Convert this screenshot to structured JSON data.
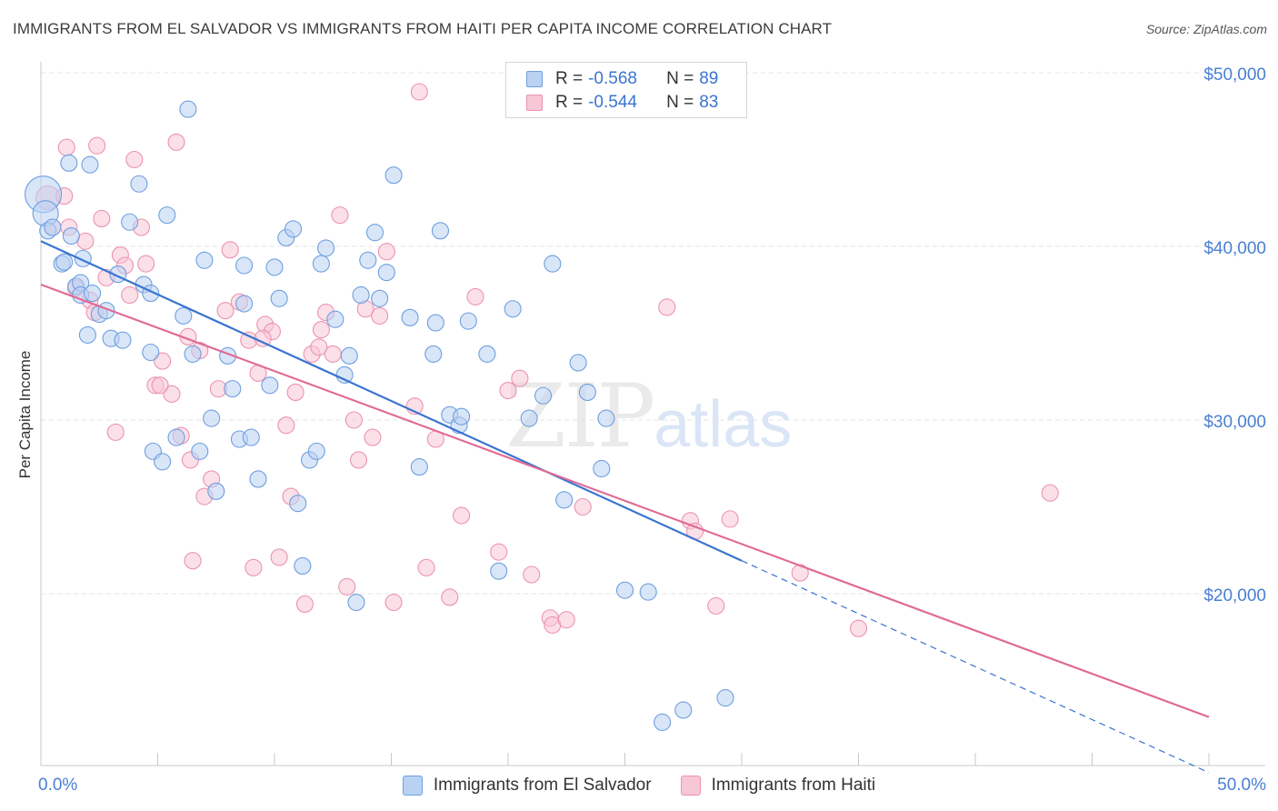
{
  "title": "IMMIGRANTS FROM EL SALVADOR VS IMMIGRANTS FROM HAITI PER CAPITA INCOME CORRELATION CHART",
  "source": "Source: ZipAtlas.com",
  "watermark": {
    "zip": "ZIP",
    "atlas": "atlas"
  },
  "legend": {
    "rows": [
      {
        "r_label": "R =",
        "r_value": "-0.568",
        "n_label": "N =",
        "n_value": "89"
      },
      {
        "r_label": "R =",
        "r_value": "-0.544",
        "n_label": "N =",
        "n_value": "83"
      }
    ]
  },
  "colors": {
    "blue_fill": "#b9d2f3",
    "blue_stroke": "#6e9fe0",
    "blue_line": "#3a74d0",
    "pink_fill": "#f7c7d6",
    "pink_stroke": "#ec93b0",
    "pink_line": "#e06a95",
    "grid": "#e5e5e5",
    "axis_label": "#4a7fd4"
  },
  "chart_data": {
    "type": "scatter",
    "ylabel": "Per Capita Income",
    "xlim": [
      0,
      50
    ],
    "ylim": [
      11000,
      51500
    ],
    "x_tick_labels": [
      "0.0%",
      "50.0%"
    ],
    "y_ticks": [
      {
        "value": 20000,
        "label": "$20,000"
      },
      {
        "value": 30000,
        "label": "$30,000"
      },
      {
        "value": 40000,
        "label": "$40,000"
      },
      {
        "value": 50000,
        "label": "$50,000"
      }
    ],
    "series": [
      {
        "name": "Immigrants from El Salvador",
        "color": "blue",
        "trend": {
          "x0": 0,
          "y0": 40300,
          "x1": 30,
          "y1": 21900,
          "dash_to_x": 50,
          "dash_to_y": 9700
        },
        "points": [
          [
            0.1,
            43000
          ],
          [
            0.2,
            41900
          ],
          [
            0.3,
            40900
          ],
          [
            0.5,
            41100
          ],
          [
            0.9,
            39000
          ],
          [
            1.0,
            39100
          ],
          [
            1.2,
            44800
          ],
          [
            1.3,
            40600
          ],
          [
            1.5,
            37700
          ],
          [
            1.7,
            37900
          ],
          [
            1.7,
            37200
          ],
          [
            1.8,
            39300
          ],
          [
            2.0,
            34900
          ],
          [
            2.1,
            44700
          ],
          [
            2.2,
            37300
          ],
          [
            2.5,
            36100
          ],
          [
            2.8,
            36300
          ],
          [
            3.0,
            34700
          ],
          [
            3.3,
            38400
          ],
          [
            3.5,
            34600
          ],
          [
            3.8,
            41400
          ],
          [
            4.4,
            37800
          ],
          [
            4.7,
            37300
          ],
          [
            4.2,
            43600
          ],
          [
            4.7,
            33900
          ],
          [
            4.8,
            28200
          ],
          [
            5.2,
            27600
          ],
          [
            5.4,
            41800
          ],
          [
            5.8,
            29000
          ],
          [
            6.1,
            36000
          ],
          [
            6.3,
            47900
          ],
          [
            6.5,
            33800
          ],
          [
            6.8,
            28200
          ],
          [
            7.0,
            39200
          ],
          [
            7.3,
            30100
          ],
          [
            7.5,
            25900
          ],
          [
            8.0,
            33700
          ],
          [
            8.2,
            31800
          ],
          [
            8.5,
            28900
          ],
          [
            8.7,
            38900
          ],
          [
            8.7,
            36700
          ],
          [
            9.0,
            29000
          ],
          [
            9.3,
            26600
          ],
          [
            9.8,
            32000
          ],
          [
            10.0,
            38800
          ],
          [
            10.2,
            37000
          ],
          [
            10.5,
            40500
          ],
          [
            10.8,
            41000
          ],
          [
            11.0,
            25200
          ],
          [
            11.2,
            21600
          ],
          [
            11.5,
            27700
          ],
          [
            11.8,
            28200
          ],
          [
            12.0,
            39000
          ],
          [
            12.2,
            39900
          ],
          [
            12.6,
            35800
          ],
          [
            13.0,
            32600
          ],
          [
            13.2,
            33700
          ],
          [
            13.5,
            19500
          ],
          [
            13.7,
            37200
          ],
          [
            14.0,
            39200
          ],
          [
            14.3,
            40800
          ],
          [
            14.5,
            37000
          ],
          [
            14.8,
            38500
          ],
          [
            15.1,
            44100
          ],
          [
            15.8,
            35900
          ],
          [
            16.2,
            27300
          ],
          [
            16.8,
            33800
          ],
          [
            16.9,
            35600
          ],
          [
            17.1,
            40900
          ],
          [
            17.5,
            30300
          ],
          [
            17.9,
            29700
          ],
          [
            18.0,
            30200
          ],
          [
            18.3,
            35700
          ],
          [
            19.1,
            33800
          ],
          [
            19.6,
            21300
          ],
          [
            20.2,
            36400
          ],
          [
            20.9,
            30100
          ],
          [
            21.5,
            31400
          ],
          [
            21.9,
            39000
          ],
          [
            22.4,
            25400
          ],
          [
            23.0,
            33300
          ],
          [
            23.4,
            31600
          ],
          [
            24.0,
            27200
          ],
          [
            24.2,
            30100
          ],
          [
            25.0,
            20200
          ],
          [
            26.6,
            12600
          ],
          [
            27.5,
            13300
          ],
          [
            29.3,
            14000
          ],
          [
            26.0,
            20100
          ]
        ]
      },
      {
        "name": "Immigrants from Haiti",
        "color": "pink",
        "trend": {
          "x0": 0,
          "y0": 37800,
          "x1": 50,
          "y1": 12900
        },
        "points": [
          [
            0.3,
            42800
          ],
          [
            0.5,
            41100
          ],
          [
            1.0,
            42900
          ],
          [
            1.1,
            45700
          ],
          [
            1.2,
            41100
          ],
          [
            1.5,
            37600
          ],
          [
            1.9,
            40300
          ],
          [
            2.1,
            36900
          ],
          [
            2.3,
            36200
          ],
          [
            2.4,
            45800
          ],
          [
            2.6,
            41600
          ],
          [
            2.8,
            38200
          ],
          [
            3.2,
            29300
          ],
          [
            3.4,
            39500
          ],
          [
            3.6,
            38900
          ],
          [
            3.8,
            37200
          ],
          [
            4.0,
            45000
          ],
          [
            4.3,
            41100
          ],
          [
            4.5,
            39000
          ],
          [
            4.9,
            32000
          ],
          [
            5.2,
            33400
          ],
          [
            5.6,
            31500
          ],
          [
            5.8,
            46000
          ],
          [
            6.0,
            29100
          ],
          [
            6.3,
            34800
          ],
          [
            6.4,
            27700
          ],
          [
            6.5,
            21900
          ],
          [
            6.8,
            34000
          ],
          [
            7.0,
            25600
          ],
          [
            7.3,
            26600
          ],
          [
            7.6,
            31800
          ],
          [
            7.9,
            36300
          ],
          [
            8.1,
            39800
          ],
          [
            8.5,
            36800
          ],
          [
            8.9,
            34600
          ],
          [
            9.1,
            21500
          ],
          [
            9.3,
            32700
          ],
          [
            9.6,
            35500
          ],
          [
            9.9,
            35100
          ],
          [
            10.2,
            22100
          ],
          [
            10.5,
            29700
          ],
          [
            10.7,
            25600
          ],
          [
            10.9,
            31600
          ],
          [
            11.3,
            19400
          ],
          [
            11.6,
            33800
          ],
          [
            11.9,
            34200
          ],
          [
            12.2,
            36200
          ],
          [
            12.5,
            33800
          ],
          [
            12.8,
            41800
          ],
          [
            13.1,
            20400
          ],
          [
            13.4,
            30000
          ],
          [
            13.6,
            27700
          ],
          [
            13.9,
            36400
          ],
          [
            14.2,
            29000
          ],
          [
            14.5,
            36000
          ],
          [
            14.8,
            39700
          ],
          [
            15.1,
            19500
          ],
          [
            16.0,
            30800
          ],
          [
            16.2,
            48900
          ],
          [
            16.5,
            21500
          ],
          [
            16.9,
            28900
          ],
          [
            17.5,
            19800
          ],
          [
            18.0,
            24500
          ],
          [
            18.6,
            37100
          ],
          [
            19.6,
            22400
          ],
          [
            20.0,
            31700
          ],
          [
            20.5,
            32400
          ],
          [
            21.0,
            21100
          ],
          [
            21.8,
            18600
          ],
          [
            21.9,
            18200
          ],
          [
            22.5,
            18500
          ],
          [
            23.2,
            25000
          ],
          [
            26.8,
            36500
          ],
          [
            27.8,
            24200
          ],
          [
            28.0,
            23600
          ],
          [
            28.9,
            19300
          ],
          [
            29.5,
            24300
          ],
          [
            32.5,
            21200
          ],
          [
            35.0,
            18000
          ],
          [
            43.2,
            25800
          ],
          [
            5.1,
            32000
          ],
          [
            9.5,
            34700
          ],
          [
            12.0,
            35200
          ]
        ]
      }
    ]
  },
  "bottom_legend": [
    "Immigrants from El Salvador",
    "Immigrants from Haiti"
  ]
}
